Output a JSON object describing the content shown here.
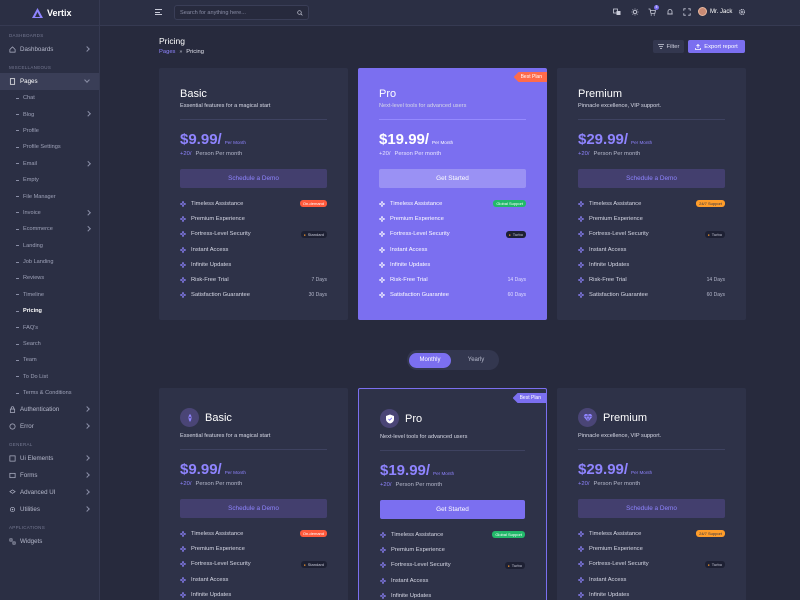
{
  "app": {
    "name": "Vertix"
  },
  "sidebar": {
    "sections": [
      "DASHBOARDS",
      "MISCELLANEOUS",
      "GENERAL",
      "APPLICATIONS"
    ],
    "dashboards": "Dashboards",
    "pages": "Pages",
    "sub": [
      "Chat",
      "Blog",
      "Profile",
      "Profile Settings",
      "Email",
      "Empty",
      "File Manager",
      "Invoice",
      "Ecommerce",
      "Landing",
      "Job Landing",
      "Reviews",
      "Timeline",
      "Pricing",
      "FAQ's",
      "Search",
      "Team",
      "To Do List",
      "Terms & Conditions"
    ],
    "authentication": "Authentication",
    "error": "Error",
    "ui_elements": "Ui Elements",
    "forms": "Forms",
    "advanced_ui": "Advanced UI",
    "utilities": "Utilities",
    "widgets": "Widgets"
  },
  "header": {
    "search_placeholder": "Search for anything here...",
    "cart_count": "5",
    "user_name": "Mr. Jack"
  },
  "page": {
    "title": "Pricing",
    "breadcrumb_parent": "Pages",
    "breadcrumb_current": "Pricing",
    "filter": "Filter",
    "export": "Export report"
  },
  "toggle": {
    "monthly": "Monthly",
    "yearly": "Yearly"
  },
  "plans": [
    {
      "name": "Basic",
      "desc": "Essential features for a magical start",
      "price": "$9.99/",
      "per": "Per Month",
      "persons": "+20/",
      "persons_label": "Person Per month",
      "cta": "Schedule a Demo",
      "features": [
        {
          "label": "Timeless Assistance",
          "badge": "On-demand"
        },
        {
          "label": "Premium Experience"
        },
        {
          "label": "Fortress-Level Security",
          "badge": "Standard"
        },
        {
          "label": "Instant Access"
        },
        {
          "label": "Infinite Updates"
        },
        {
          "label": "Risk-Free Trial",
          "value": "7 Days"
        },
        {
          "label": "Satisfaction Guarantee",
          "value": "30 Days"
        }
      ]
    },
    {
      "name": "Pro",
      "desc": "Next-level tools for advanced users",
      "price": "$19.99/",
      "per": "Per Month",
      "persons": "+20/",
      "persons_label": "Person Per month",
      "cta": "Get Started",
      "ribbon": "Best Plan",
      "features": [
        {
          "label": "Timeless Assistance",
          "badge": "Global Support"
        },
        {
          "label": "Premium Experience"
        },
        {
          "label": "Fortress-Level Security",
          "badge": "Turbo"
        },
        {
          "label": "Instant Access"
        },
        {
          "label": "Infinite Updates"
        },
        {
          "label": "Risk-Free Trial",
          "value": "14 Days"
        },
        {
          "label": "Satisfaction Guarantee",
          "value": "60 Days"
        }
      ]
    },
    {
      "name": "Premium",
      "desc": "Pinnacle excellence, VIP support.",
      "price": "$29.99/",
      "per": "Per Month",
      "persons": "+20/",
      "persons_label": "Person Per month",
      "cta": "Schedule a Demo",
      "features": [
        {
          "label": "Timeless Assistance",
          "badge": "24/7 Support"
        },
        {
          "label": "Premium Experience"
        },
        {
          "label": "Fortress-Level Security",
          "badge": "Turbo"
        },
        {
          "label": "Instant Access"
        },
        {
          "label": "Infinite Updates"
        },
        {
          "label": "Risk-Free Trial",
          "value": "14 Days"
        },
        {
          "label": "Satisfaction Guarantee",
          "value": "60 Days"
        }
      ]
    }
  ],
  "colors": {
    "accent": "#7b6ff0",
    "bg": "#272a3d",
    "card": "#2e3248",
    "ribbon_hot": "#ff6b4a"
  }
}
